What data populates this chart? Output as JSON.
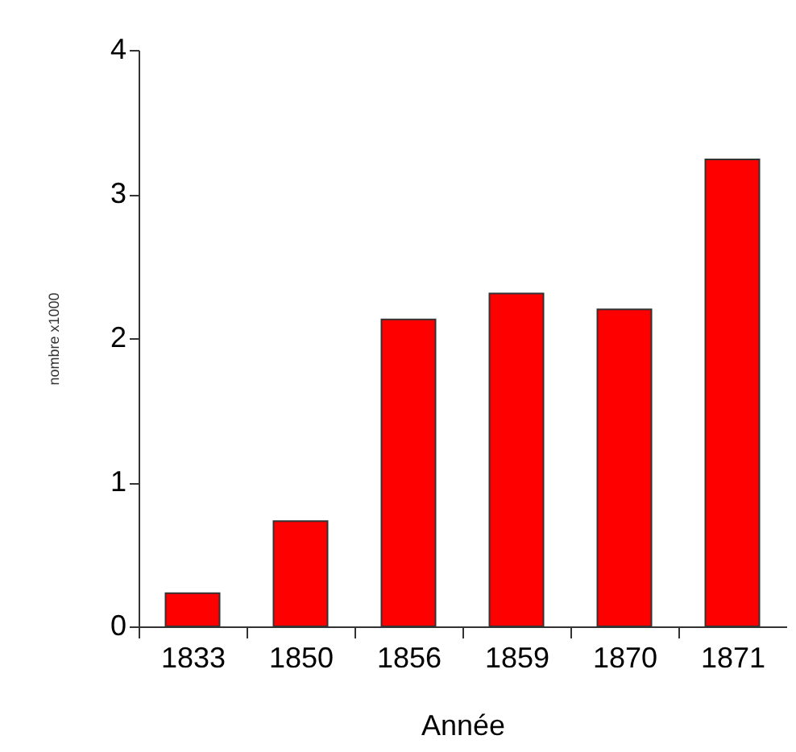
{
  "chart_data": {
    "type": "bar",
    "xlabel": "Année",
    "ylabel": "nombre x1000",
    "categories": [
      "1833",
      "1850",
      "1856",
      "1859",
      "1870",
      "1871"
    ],
    "values": [
      0.23,
      0.73,
      2.13,
      2.31,
      2.2,
      3.24
    ],
    "color": "#ff0000",
    "ylim": [
      0,
      4
    ],
    "yticks": [
      0,
      1,
      2,
      3,
      4
    ],
    "grid": false
  }
}
